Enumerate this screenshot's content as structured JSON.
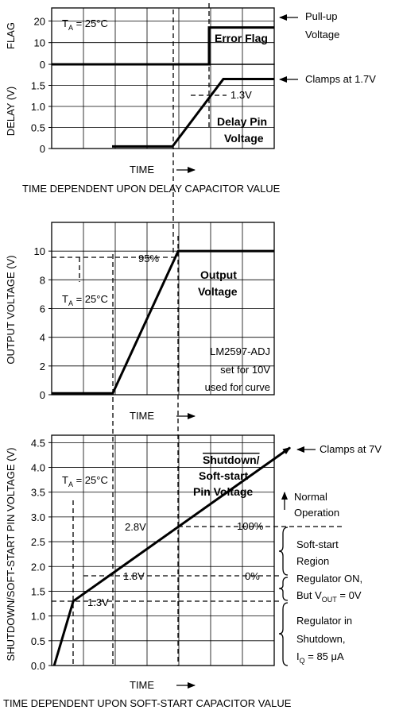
{
  "chart_data": [
    {
      "type": "line",
      "ylabel": "FLAG",
      "ta": [
        "T",
        "A",
        " = 25°C"
      ],
      "annotations": [
        "Error Flag",
        "Pull-up",
        "Voltage"
      ],
      "x": [
        0,
        4.95,
        4.95,
        7
      ],
      "values": [
        0,
        0,
        17,
        17
      ],
      "color": "#000000",
      "xlim": [
        0,
        7
      ],
      "xticks": [
        1,
        2,
        3,
        4,
        5,
        6
      ],
      "ylim": [
        0,
        26
      ],
      "yticks": [
        0,
        10,
        20
      ],
      "grid": true
    },
    {
      "type": "line",
      "ylabel": "DELAY (V)",
      "xlabel": "TIME",
      "caption": "TIME DEPENDENT UPON DELAY CAPACITOR VALUE",
      "annotations": [
        "Clamps at 1.7V",
        "1.3V",
        "Delay Pin",
        "Voltage"
      ],
      "x": [
        1.9,
        3.8,
        5.4,
        7
      ],
      "values": [
        0.05,
        0.05,
        1.65,
        1.65
      ],
      "color": "#000000",
      "xlim": [
        0,
        7
      ],
      "xticks": [
        1,
        2,
        3,
        4,
        5,
        6
      ],
      "ylim": [
        0,
        2
      ],
      "yticks": [
        0,
        0.5,
        {
          "value": 1,
          "label": "1.0"
        },
        1.5
      ],
      "grid": true
    },
    {
      "type": "line",
      "ylabel": "OUTPUT VOLTAGE (V)",
      "xlabel": "TIME",
      "ta": [
        "T",
        "A",
        " = 25°C"
      ],
      "annotations": [
        "95%",
        "Output",
        "Voltage",
        "LM2597-ADJ",
        "set for 10V",
        "used for curve"
      ],
      "x": [
        0,
        1.92,
        3.98,
        7
      ],
      "values": [
        0.1,
        0.1,
        10,
        10
      ],
      "color": "#000000",
      "xlim": [
        0,
        7
      ],
      "xticks": [
        1,
        2,
        3,
        4,
        5,
        6
      ],
      "ylim": [
        0,
        12
      ],
      "yticks": [
        0,
        2,
        4,
        6,
        8,
        10
      ],
      "grid": true
    },
    {
      "type": "line",
      "ylabel": "SHUTDOWN/SOFT-START PIN VOLTAGE (V)",
      "xlabel": "TIME",
      "caption": "TIME DEPENDENT UPON SOFT-START CAPACITOR VALUE",
      "ta": [
        "T",
        "A",
        " = 25°C"
      ],
      "annotations": [
        "Clamps at 7V",
        "Shutdown/",
        "Soft-start",
        "Pin Voltage",
        "2.8V",
        "1.8V",
        "1.3V",
        "100%",
        "0%",
        "Normal",
        "Operation",
        "Soft-start",
        "Region",
        "Regulator ON,",
        [
          "But V",
          "OUT",
          " = 0V"
        ],
        "Regulator in",
        "Shutdown,",
        [
          "I",
          "Q",
          " = 85 μA"
        ]
      ],
      "x": [
        0.08,
        0.68,
        7.5
      ],
      "values": [
        0,
        1.3,
        4.4
      ],
      "color": "#000000",
      "xlim": [
        0,
        7
      ],
      "xticks": [
        1,
        2,
        3,
        4,
        5,
        6
      ],
      "ylim": [
        0,
        4.65
      ],
      "yticks": [
        {
          "value": 0,
          "label": "0.0"
        },
        0.5,
        {
          "value": 1,
          "label": "1.0"
        },
        1.5,
        {
          "value": 2,
          "label": "2.0"
        },
        2.5,
        {
          "value": 3,
          "label": "3.0"
        },
        3.5,
        {
          "value": 4,
          "label": "4.0"
        },
        4.5
      ],
      "grid": true
    }
  ]
}
